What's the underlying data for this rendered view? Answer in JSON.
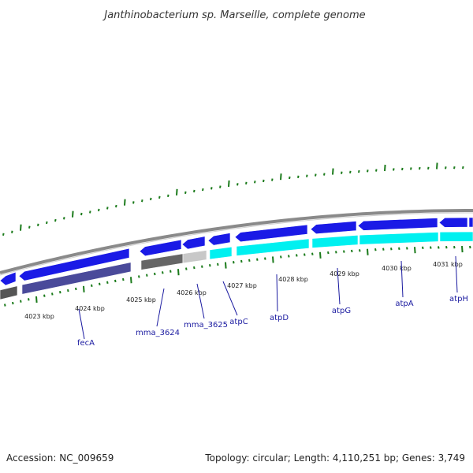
{
  "title": "Janthinobacterium sp. Marseille, complete genome",
  "footer": {
    "accession": "Accession: NC_009659",
    "summary": "Topology: circular; Length: 4,110,251 bp; Genes: 3,749"
  },
  "colors": {
    "backbone": "#8a8a8a",
    "forward_cds": "#1a1ae6",
    "reverse_cds": "#4a4a9a",
    "reverse_cds_alt": "#00f0f0",
    "other_gray": "#666666",
    "light_gray": "#c8c8c8",
    "tick": "#1a7a1a",
    "label": "#1a1aa0"
  },
  "scale_labels": [
    "4023 kbp",
    "4024 kbp",
    "4025 kbp",
    "4026 kbp",
    "4027 kbp",
    "4028 kbp",
    "4029 kbp",
    "4030 kbp",
    "4031 kbp"
  ],
  "genes": [
    {
      "name": "fecA"
    },
    {
      "name": "mma_3624"
    },
    {
      "name": "mma_3625"
    },
    {
      "name": "atpC"
    },
    {
      "name": "atpD"
    },
    {
      "name": "atpG"
    },
    {
      "name": "atpA"
    },
    {
      "name": "atpH"
    }
  ]
}
